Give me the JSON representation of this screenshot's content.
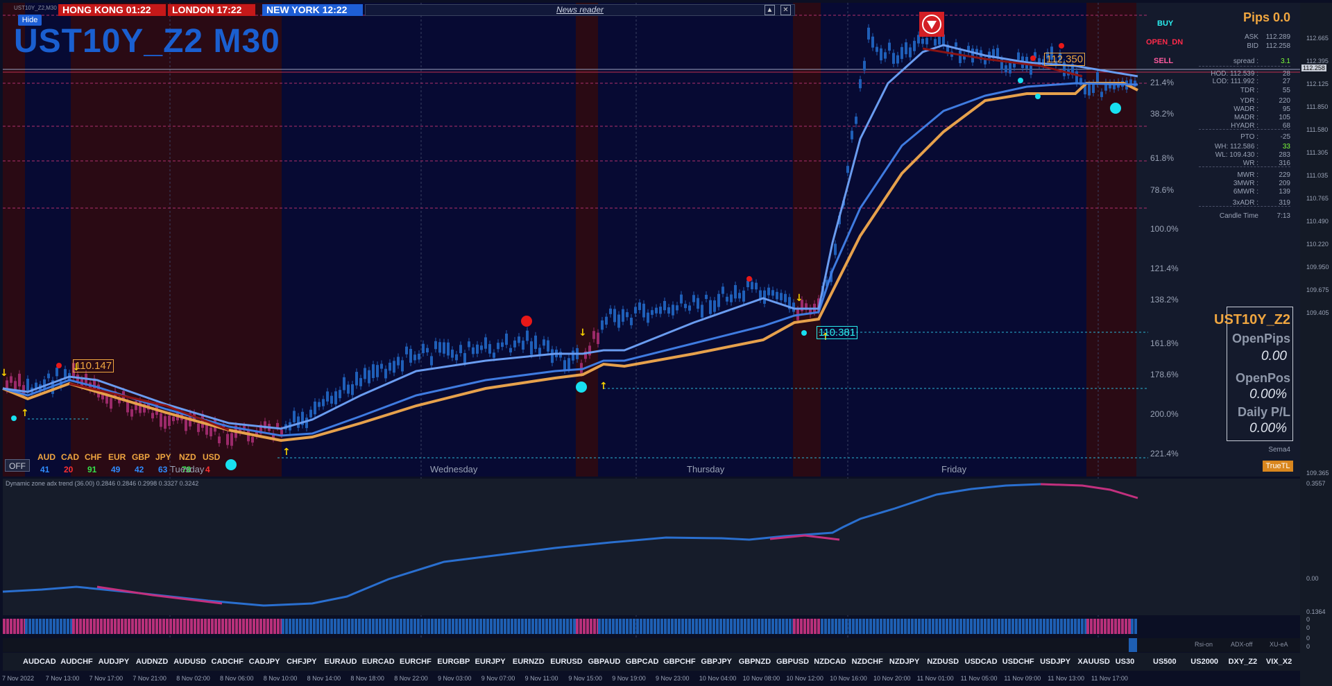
{
  "window_title": "UST10Y_Z2,M30",
  "hide_label": "Hide",
  "symbol_title": "UST10Y_Z2 M30",
  "clocks": [
    {
      "label": "HONG KONG 01:22",
      "bg": "#c51919"
    },
    {
      "label": "LONDON   17:22",
      "bg": "#c51919"
    },
    {
      "label": "NEW YORK  12:22",
      "bg": "#1e5fd6"
    }
  ],
  "news_reader": "News reader",
  "levels_labels": {
    "buy": "BUY",
    "open_dn": "OPEN_DN",
    "sell": "SELL"
  },
  "price_callouts": [
    "110.147",
    "110.381",
    "112.350"
  ],
  "pips_header": "Pips 0.0",
  "stats": [
    {
      "k": "ASK",
      "v": "112.289"
    },
    {
      "k": "BID",
      "v": "112.258"
    },
    {
      "k": "spread :",
      "v": "3.1"
    },
    {
      "k": "HOD: 112.539 :",
      "v": "28"
    },
    {
      "k": "LOD: 111.992 :",
      "v": "27"
    },
    {
      "k": "TDR :",
      "v": "55"
    },
    {
      "k": "YDR :",
      "v": "220"
    },
    {
      "k": "WADR :",
      "v": "95"
    },
    {
      "k": "MADR :",
      "v": "105"
    },
    {
      "k": "HYADR :",
      "v": "68"
    },
    {
      "k": "PTO :",
      "v": "-25"
    },
    {
      "k": "WH: 112.586 :",
      "v": "33"
    },
    {
      "k": "WL: 109.430 :",
      "v": "283"
    },
    {
      "k": "WR :",
      "v": "316"
    },
    {
      "k": "MWR :",
      "v": "229"
    },
    {
      "k": "3MWR :",
      "v": "209"
    },
    {
      "k": "6MWR :",
      "v": "139"
    },
    {
      "k": "3xADR :",
      "v": "319"
    },
    {
      "k": "Candle Time",
      "v": "7:13"
    }
  ],
  "fib_levels": [
    "21.4%",
    "38.2%",
    "61.8%",
    "78.6%",
    "100.0%",
    "121.4%",
    "138.2%",
    "161.8%",
    "178.6%",
    "200.0%",
    "221.4%"
  ],
  "price_axis": [
    "112.665",
    "112.395",
    "112.125",
    "111.850",
    "111.580",
    "111.305",
    "111.035",
    "110.765",
    "110.490",
    "110.220",
    "109.950",
    "109.675",
    "109.405",
    "109.365"
  ],
  "ask_price_tag": "112.258",
  "open_panel": {
    "symbol": "UST10Y_Z2",
    "open_pips_label": "OpenPips",
    "open_pips_value": "0.00",
    "open_pos_label": "OpenPos",
    "open_pos_value": "0.00%",
    "daily_pl_label": "Daily P/L",
    "daily_pl_value": "0.00%",
    "sema": "Sema4",
    "truetl": "TrueTL"
  },
  "off_label": "OFF",
  "currencies": [
    {
      "c": "AUD",
      "v": "41",
      "color": "#2f8cff"
    },
    {
      "c": "CAD",
      "v": "20",
      "color": "#ff3030"
    },
    {
      "c": "CHF",
      "v": "91",
      "color": "#35e24a"
    },
    {
      "c": "EUR",
      "v": "49",
      "color": "#2f8cff"
    },
    {
      "c": "GBP",
      "v": "42",
      "color": "#2f8cff"
    },
    {
      "c": "JPY",
      "v": "63",
      "color": "#2f8cff"
    },
    {
      "c": "NZD",
      "v": "78",
      "color": "#35e24a"
    },
    {
      "c": "USD",
      "v": "4",
      "color": "#ff3030"
    }
  ],
  "day_labels": [
    "Tuesday",
    "Wednesday",
    "Thursday",
    "Friday"
  ],
  "indicator_title": "Dynamic zone adx trend (36.00) 0.2846 0.2846 0.2998 0.3327 0.3242",
  "indicator_axis": [
    "0.3557",
    "0.00",
    "0.1364"
  ],
  "sub_axis": [
    "0",
    "0",
    "0",
    "0"
  ],
  "sub_labels": [
    "Rsi-on",
    "ADX-off",
    "XU-eA"
  ],
  "pairs": [
    "AUDCAD",
    "AUDCHF",
    "AUDJPY",
    "AUDNZD",
    "AUDUSD",
    "CADCHF",
    "CADJPY",
    "CHFJPY",
    "EURAUD",
    "EURCAD",
    "EURCHF",
    "EURGBP",
    "EURJPY",
    "EURNZD",
    "EURUSD",
    "GBPAUD",
    "GBPCAD",
    "GBPCHF",
    "GBPJPY",
    "GBPNZD",
    "GBPUSD",
    "NZDCAD",
    "NZDCHF",
    "NZDJPY",
    "NZDUSD",
    "USDCAD",
    "USDCHF",
    "USDJPY",
    "XAUUSD",
    "US30",
    "US500",
    "US2000",
    "DXY_Z2",
    "VIX_X2"
  ],
  "time_axis": [
    "7 Nov 2022",
    "7 Nov 13:00",
    "7 Nov 17:00",
    "7 Nov 21:00",
    "8 Nov 02:00",
    "8 Nov 06:00",
    "8 Nov 10:00",
    "8 Nov 14:00",
    "8 Nov 18:00",
    "8 Nov 22:00",
    "9 Nov 03:00",
    "9 Nov 07:00",
    "9 Nov 11:00",
    "9 Nov 15:00",
    "9 Nov 19:00",
    "9 Nov 23:00",
    "10 Nov 04:00",
    "10 Nov 08:00",
    "10 Nov 12:00",
    "10 Nov 16:00",
    "10 Nov 20:00",
    "11 Nov 01:00",
    "11 Nov 05:00",
    "11 Nov 09:00",
    "11 Nov 13:00",
    "11 Nov 17:00"
  ]
}
